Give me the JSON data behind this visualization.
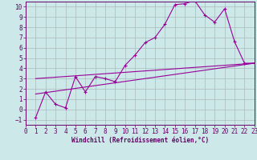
{
  "xlabel": "Windchill (Refroidissement éolien,°C)",
  "bg_color": "#cce8e8",
  "line_color": "#990099",
  "grid_color": "#aabbbb",
  "axis_color": "#660066",
  "spine_color": "#660066",
  "xlim": [
    0,
    23
  ],
  "ylim": [
    -1.5,
    10.5
  ],
  "xticks": [
    0,
    1,
    2,
    3,
    4,
    5,
    6,
    7,
    8,
    9,
    10,
    11,
    12,
    13,
    14,
    15,
    16,
    17,
    18,
    19,
    20,
    21,
    22,
    23
  ],
  "yticks": [
    -1,
    0,
    1,
    2,
    3,
    4,
    5,
    6,
    7,
    8,
    9,
    10
  ],
  "line1_x": [
    1,
    2,
    3,
    4,
    5,
    6,
    7,
    8,
    9,
    10,
    11,
    12,
    13,
    14,
    15,
    16,
    17,
    18,
    19,
    20,
    21,
    22,
    23
  ],
  "line1_y": [
    -0.8,
    1.7,
    0.5,
    0.15,
    3.2,
    1.7,
    3.2,
    3.0,
    2.7,
    4.3,
    5.3,
    6.5,
    7.0,
    8.3,
    10.2,
    10.3,
    10.6,
    9.2,
    8.5,
    9.8,
    6.6,
    4.5,
    4.5
  ],
  "line2_x": [
    1,
    23
  ],
  "line2_y": [
    1.5,
    4.5
  ],
  "line3_x": [
    1,
    23
  ],
  "line3_y": [
    3.0,
    4.5
  ],
  "tick_fontsize": 5.5,
  "xlabel_fontsize": 5.5
}
